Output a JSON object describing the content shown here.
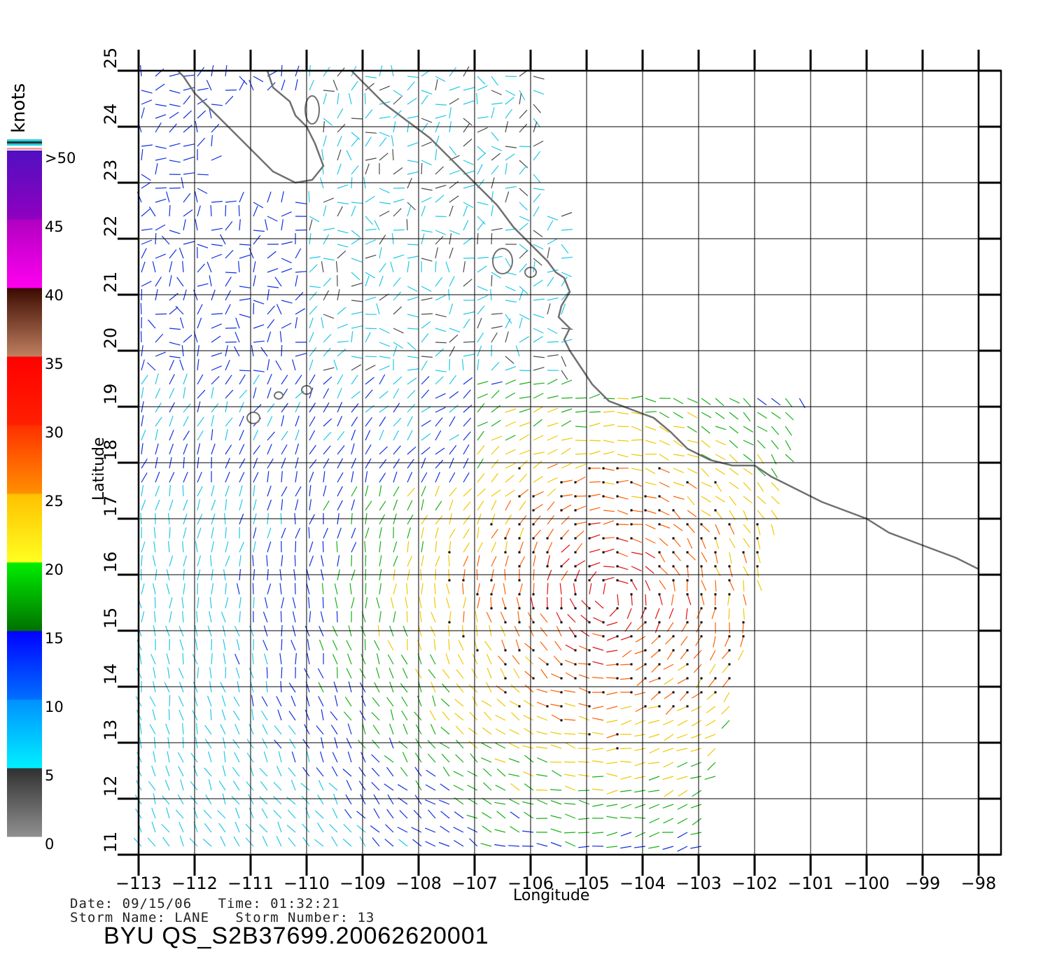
{
  "info": {
    "date_line": "Date: 09/15/06   Time: 01:32:21",
    "storm_line": "Storm Name: LANE   Storm Number: 13",
    "product_id": "BYU QS_S2B37699.20062620001"
  },
  "axes": {
    "xlabel": "Longitude",
    "ylabel": "Latitude",
    "x_ticks": [
      "-113",
      "-112",
      "-111",
      "-110",
      "-109",
      "-108",
      "-107",
      "-106",
      "-105",
      "-104",
      "-103",
      "-102",
      "-101",
      "-100",
      "-99",
      "-98"
    ],
    "y_ticks": [
      "11",
      "12",
      "13",
      "14",
      "15",
      "16",
      "17",
      "18",
      "19",
      "20",
      "21",
      "22",
      "23",
      "24",
      "25"
    ],
    "x_range": [
      -113,
      -97.6
    ],
    "y_range": [
      11,
      25
    ]
  },
  "colorbar": {
    "unit": "knots",
    "labels": [
      ">50",
      "45",
      "40",
      "35",
      "30",
      "25",
      "20",
      "15",
      "10",
      "5",
      "0"
    ],
    "bands": [
      {
        "from": 0,
        "to": 5,
        "top": "#303030",
        "bottom": "#909090"
      },
      {
        "from": 5,
        "to": 10,
        "top": "#0090ff",
        "bottom": "#00f0ff"
      },
      {
        "from": 10,
        "to": 15,
        "top": "#0000ff",
        "bottom": "#0070ff"
      },
      {
        "from": 15,
        "to": 20,
        "top": "#00f000",
        "bottom": "#007000"
      },
      {
        "from": 20,
        "to": 25,
        "top": "#ffc000",
        "bottom": "#ffff20"
      },
      {
        "from": 25,
        "to": 30,
        "top": "#ff3000",
        "bottom": "#ff9000"
      },
      {
        "from": 30,
        "to": 35,
        "top": "#ff0000",
        "bottom": "#ff2000"
      },
      {
        "from": 35,
        "to": 40,
        "top": "#3a0a00",
        "bottom": "#c08060"
      },
      {
        "from": 40,
        "to": 45,
        "top": "#b000c0",
        "bottom": "#ff00f0"
      },
      {
        "from": 45,
        "to": 50,
        "top": "#5010c0",
        "bottom": "#9000c0"
      }
    ]
  },
  "wind_colors": {
    "calm": "#4a4a4a",
    "light": "#20c8e8",
    "moderate": "#1030e0",
    "fresh": "#18b018",
    "strong": "#f0c800",
    "gale": "#ff6000",
    "storm": "#e01010",
    "violent": "#d000d0"
  },
  "map": {
    "coast_color": "#707070",
    "grid_color": "#000000"
  }
}
